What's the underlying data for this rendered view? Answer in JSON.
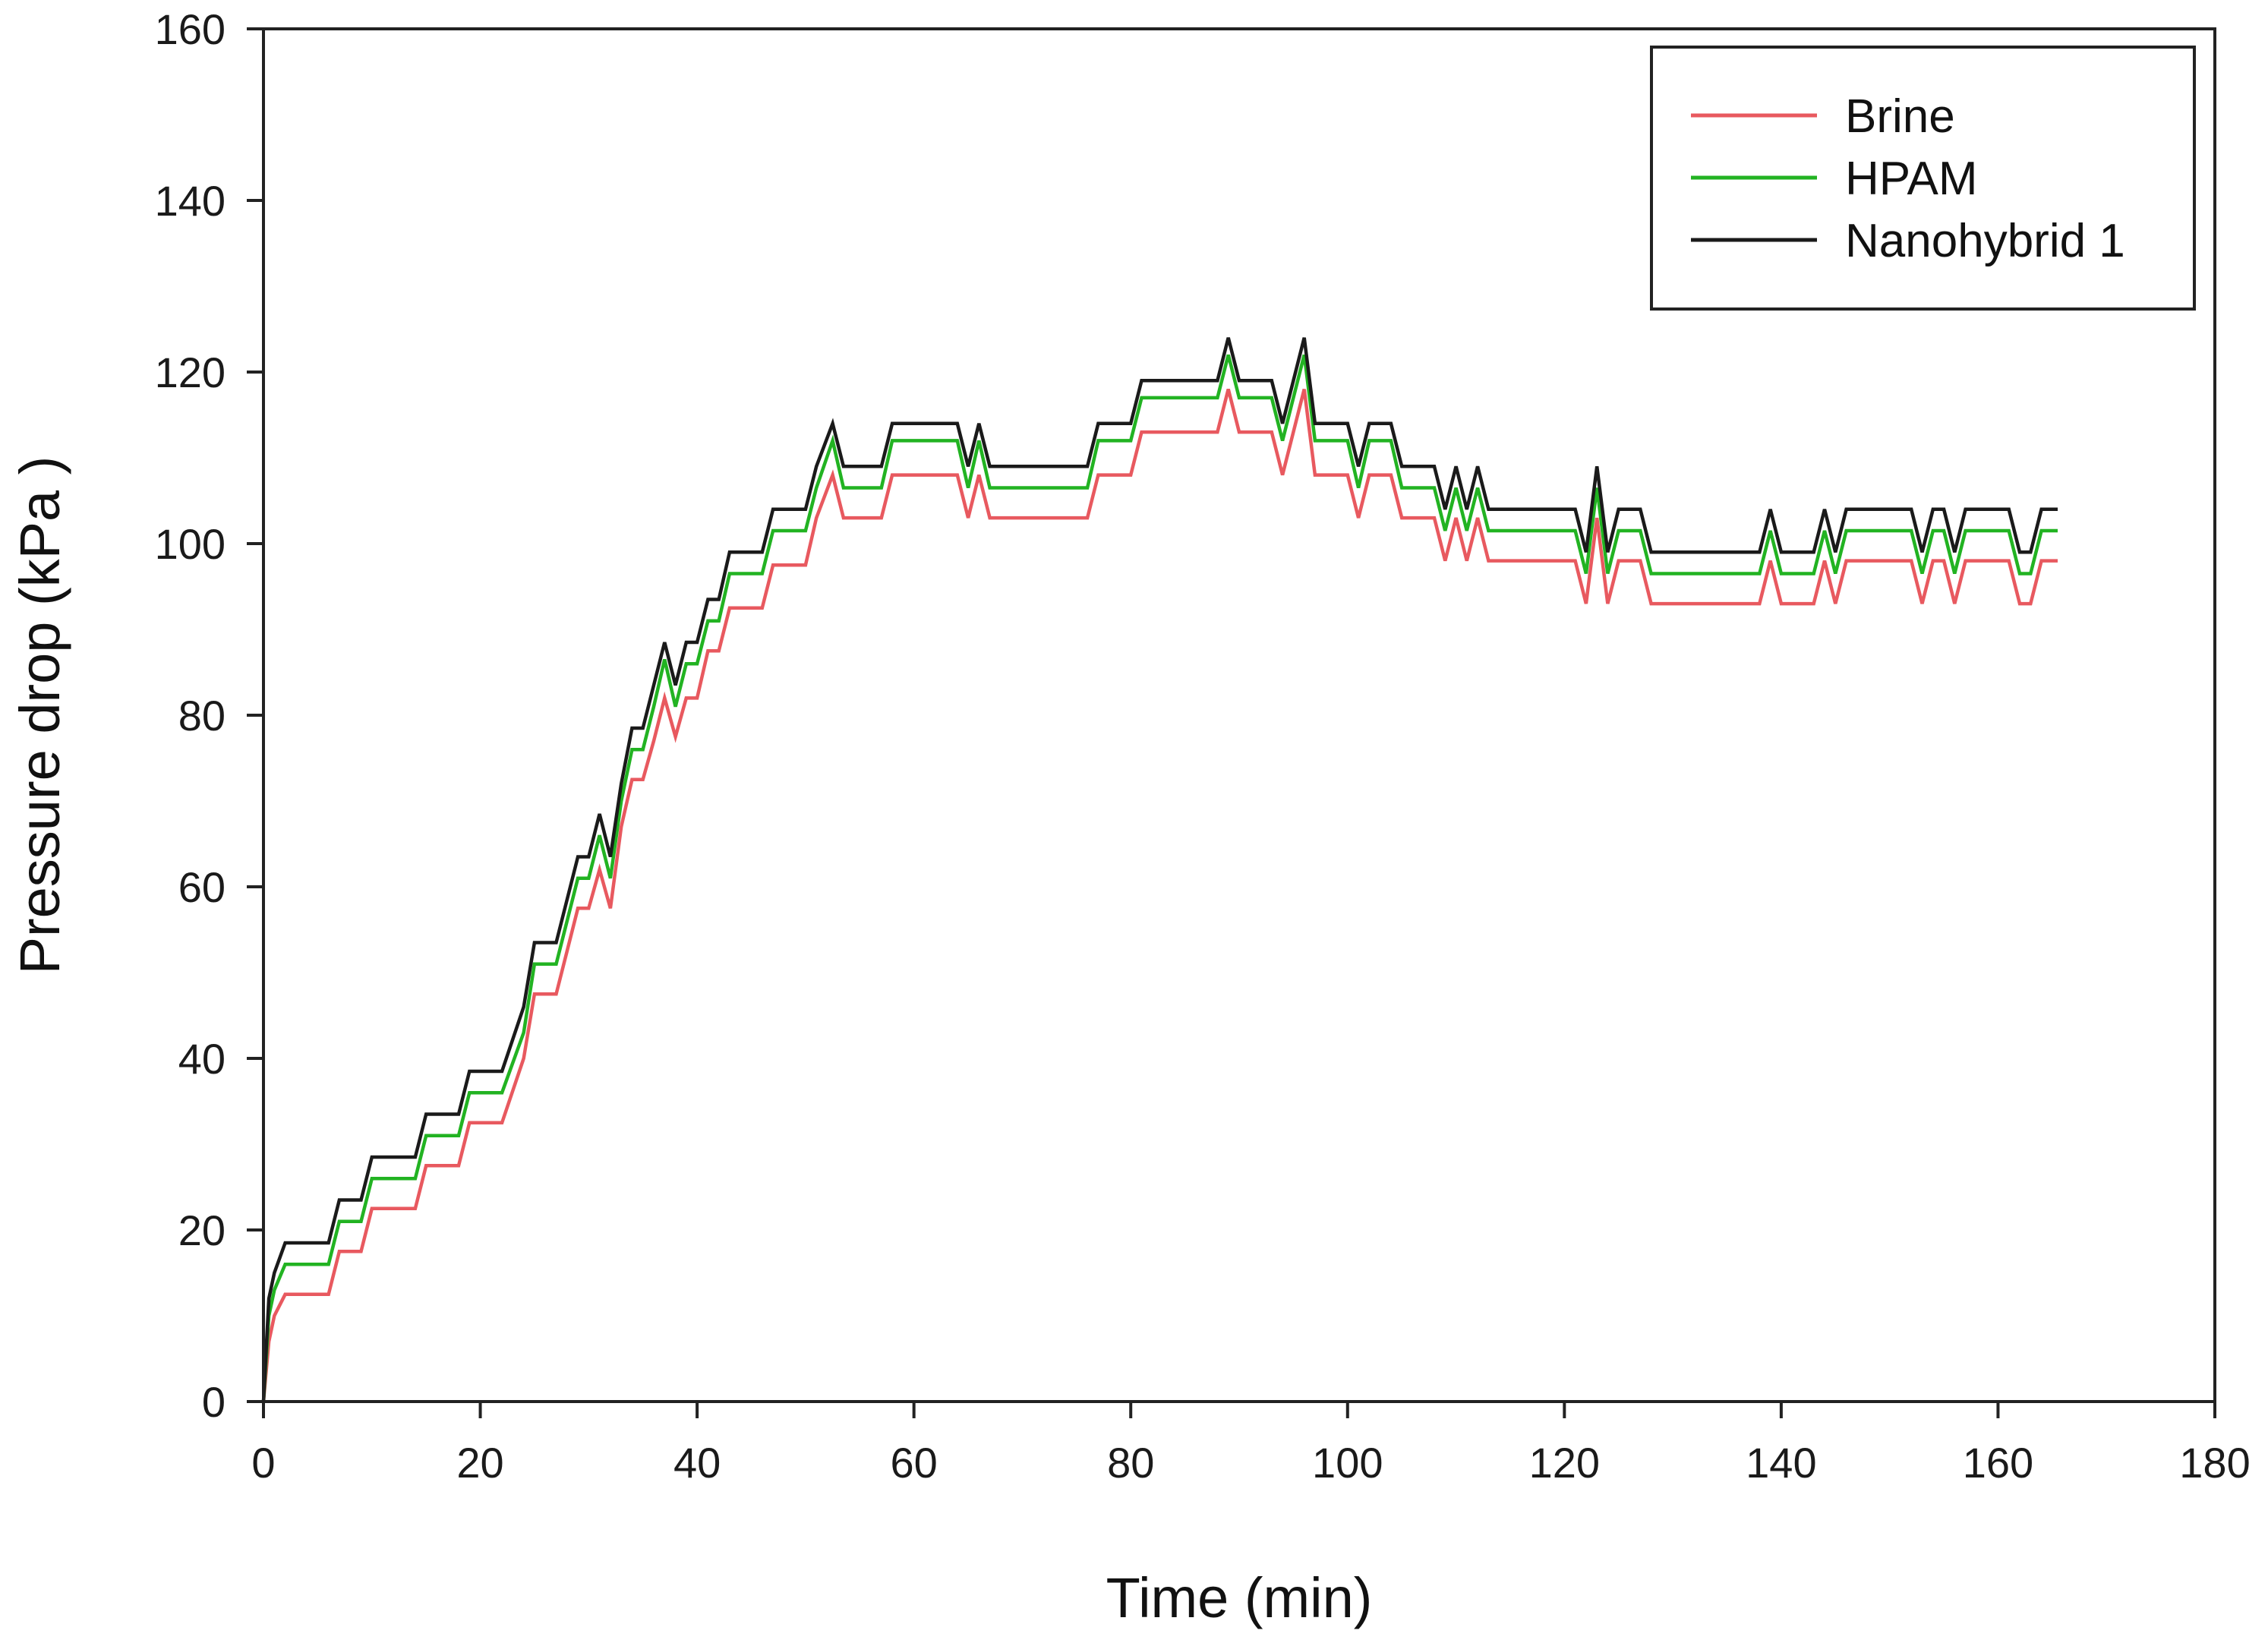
{
  "chart_data": {
    "type": "line",
    "title": "",
    "xlabel": "Time (min)",
    "ylabel": "Pressure drop (kPa )",
    "xlim": [
      0,
      180
    ],
    "ylim": [
      0,
      160
    ],
    "xticks": [
      "0",
      "20",
      "40",
      "60",
      "80",
      "100",
      "120",
      "140",
      "160",
      "180"
    ],
    "yticks": [
      "0",
      "20",
      "40",
      "60",
      "80",
      "100",
      "120",
      "140",
      "160"
    ],
    "grid": false,
    "legend_position": "top-right",
    "series": [
      {
        "name": "Brine",
        "color": "#e8595f",
        "points": [
          [
            0,
            0
          ],
          [
            0.5,
            7
          ],
          [
            1,
            10
          ],
          [
            2,
            12.5
          ],
          [
            6,
            12.5
          ],
          [
            7,
            17.5
          ],
          [
            9,
            17.5
          ],
          [
            10,
            22.5
          ],
          [
            14,
            22.5
          ],
          [
            15,
            27.5
          ],
          [
            18,
            27.5
          ],
          [
            19,
            32.5
          ],
          [
            22,
            32.5
          ],
          [
            24,
            40
          ],
          [
            25,
            47.5
          ],
          [
            27,
            47.5
          ],
          [
            28,
            52.5
          ],
          [
            29,
            57.5
          ],
          [
            30,
            57.5
          ],
          [
            31,
            62
          ],
          [
            32,
            57.5
          ],
          [
            33,
            67
          ],
          [
            34,
            72.5
          ],
          [
            35,
            72.5
          ],
          [
            36,
            77
          ],
          [
            37,
            82
          ],
          [
            38,
            77.5
          ],
          [
            39,
            82
          ],
          [
            40,
            82
          ],
          [
            41,
            87.5
          ],
          [
            42,
            87.5
          ],
          [
            43,
            92.5
          ],
          [
            46,
            92.5
          ],
          [
            47,
            97.5
          ],
          [
            50,
            97.5
          ],
          [
            51,
            103
          ],
          [
            52.5,
            108
          ],
          [
            53.5,
            103
          ],
          [
            57,
            103
          ],
          [
            58,
            108
          ],
          [
            64,
            108
          ],
          [
            65,
            103
          ],
          [
            66,
            108
          ],
          [
            67,
            103
          ],
          [
            76,
            103
          ],
          [
            77,
            108
          ],
          [
            80,
            108
          ],
          [
            81,
            113
          ],
          [
            88,
            113
          ],
          [
            89,
            118
          ],
          [
            90,
            113
          ],
          [
            93,
            113
          ],
          [
            94,
            108
          ],
          [
            95,
            113
          ],
          [
            96,
            118
          ],
          [
            97,
            108
          ],
          [
            100,
            108
          ],
          [
            101,
            103
          ],
          [
            102,
            108
          ],
          [
            104,
            108
          ],
          [
            105,
            103
          ],
          [
            108,
            103
          ],
          [
            109,
            98
          ],
          [
            110,
            103
          ],
          [
            111,
            98
          ],
          [
            112,
            103
          ],
          [
            113,
            98
          ],
          [
            121,
            98
          ],
          [
            122,
            93
          ],
          [
            123,
            103
          ],
          [
            124,
            93
          ],
          [
            125,
            98
          ],
          [
            127,
            98
          ],
          [
            128,
            93
          ],
          [
            138,
            93
          ],
          [
            139,
            98
          ],
          [
            140,
            93
          ],
          [
            143,
            93
          ],
          [
            144,
            98
          ],
          [
            145,
            93
          ],
          [
            146,
            98
          ],
          [
            147,
            98
          ],
          [
            152,
            98
          ],
          [
            153,
            93
          ],
          [
            154,
            98
          ],
          [
            155,
            98
          ],
          [
            156,
            93
          ],
          [
            157,
            98
          ],
          [
            161,
            98
          ],
          [
            162,
            93
          ],
          [
            163,
            93
          ],
          [
            164,
            98
          ],
          [
            165.5,
            98
          ]
        ]
      },
      {
        "name": "HPAM",
        "color": "#22b322",
        "points": [
          [
            0,
            0
          ],
          [
            0.5,
            10
          ],
          [
            1,
            13
          ],
          [
            2,
            16
          ],
          [
            6,
            16
          ],
          [
            7,
            21
          ],
          [
            9,
            21
          ],
          [
            10,
            26
          ],
          [
            14,
            26
          ],
          [
            15,
            31
          ],
          [
            18,
            31
          ],
          [
            19,
            36
          ],
          [
            22,
            36
          ],
          [
            24,
            43
          ],
          [
            25,
            51
          ],
          [
            27,
            51
          ],
          [
            28,
            56
          ],
          [
            29,
            61
          ],
          [
            30,
            61
          ],
          [
            31,
            66
          ],
          [
            32,
            61
          ],
          [
            33,
            70
          ],
          [
            34,
            76
          ],
          [
            35,
            76
          ],
          [
            36,
            81
          ],
          [
            37,
            86.5
          ],
          [
            38,
            81
          ],
          [
            39,
            86
          ],
          [
            40,
            86
          ],
          [
            41,
            91
          ],
          [
            42,
            91
          ],
          [
            43,
            96.5
          ],
          [
            46,
            96.5
          ],
          [
            47,
            101.5
          ],
          [
            50,
            101.5
          ],
          [
            51,
            106.5
          ],
          [
            52.5,
            112
          ],
          [
            53.5,
            106.5
          ],
          [
            57,
            106.5
          ],
          [
            58,
            112
          ],
          [
            64,
            112
          ],
          [
            65,
            106.5
          ],
          [
            66,
            112
          ],
          [
            67,
            106.5
          ],
          [
            76,
            106.5
          ],
          [
            77,
            112
          ],
          [
            80,
            112
          ],
          [
            81,
            117
          ],
          [
            88,
            117
          ],
          [
            89,
            122
          ],
          [
            90,
            117
          ],
          [
            93,
            117
          ],
          [
            94,
            112
          ],
          [
            95,
            117
          ],
          [
            96,
            122
          ],
          [
            97,
            112
          ],
          [
            100,
            112
          ],
          [
            101,
            106.5
          ],
          [
            102,
            112
          ],
          [
            104,
            112
          ],
          [
            105,
            106.5
          ],
          [
            108,
            106.5
          ],
          [
            109,
            101.5
          ],
          [
            110,
            106.5
          ],
          [
            111,
            101.5
          ],
          [
            112,
            106.5
          ],
          [
            113,
            101.5
          ],
          [
            121,
            101.5
          ],
          [
            122,
            96.5
          ],
          [
            123,
            106.5
          ],
          [
            124,
            96.5
          ],
          [
            125,
            101.5
          ],
          [
            127,
            101.5
          ],
          [
            128,
            96.5
          ],
          [
            138,
            96.5
          ],
          [
            139,
            101.5
          ],
          [
            140,
            96.5
          ],
          [
            143,
            96.5
          ],
          [
            144,
            101.5
          ],
          [
            145,
            96.5
          ],
          [
            146,
            101.5
          ],
          [
            147,
            101.5
          ],
          [
            152,
            101.5
          ],
          [
            153,
            96.5
          ],
          [
            154,
            101.5
          ],
          [
            155,
            101.5
          ],
          [
            156,
            96.5
          ],
          [
            157,
            101.5
          ],
          [
            161,
            101.5
          ],
          [
            162,
            96.5
          ],
          [
            163,
            96.5
          ],
          [
            164,
            101.5
          ],
          [
            165.5,
            101.5
          ]
        ]
      },
      {
        "name": "Nanohybrid 1",
        "color": "#1a1a1a",
        "points": [
          [
            0,
            0
          ],
          [
            0.5,
            12
          ],
          [
            1,
            15
          ],
          [
            2,
            18.5
          ],
          [
            6,
            18.5
          ],
          [
            7,
            23.5
          ],
          [
            9,
            23.5
          ],
          [
            10,
            28.5
          ],
          [
            14,
            28.5
          ],
          [
            15,
            33.5
          ],
          [
            18,
            33.5
          ],
          [
            19,
            38.5
          ],
          [
            22,
            38.5
          ],
          [
            24,
            46
          ],
          [
            25,
            53.5
          ],
          [
            27,
            53.5
          ],
          [
            28,
            58.5
          ],
          [
            29,
            63.5
          ],
          [
            30,
            63.5
          ],
          [
            31,
            68.5
          ],
          [
            32,
            63.5
          ],
          [
            33,
            72
          ],
          [
            34,
            78.5
          ],
          [
            35,
            78.5
          ],
          [
            36,
            83.5
          ],
          [
            37,
            88.5
          ],
          [
            38,
            83.5
          ],
          [
            39,
            88.5
          ],
          [
            40,
            88.5
          ],
          [
            41,
            93.5
          ],
          [
            42,
            93.5
          ],
          [
            43,
            99
          ],
          [
            46,
            99
          ],
          [
            47,
            104
          ],
          [
            50,
            104
          ],
          [
            51,
            109
          ],
          [
            52.5,
            114
          ],
          [
            53.5,
            109
          ],
          [
            57,
            109
          ],
          [
            58,
            114
          ],
          [
            64,
            114
          ],
          [
            65,
            109
          ],
          [
            66,
            114
          ],
          [
            67,
            109
          ],
          [
            76,
            109
          ],
          [
            77,
            114
          ],
          [
            80,
            114
          ],
          [
            81,
            119
          ],
          [
            88,
            119
          ],
          [
            89,
            124
          ],
          [
            90,
            119
          ],
          [
            93,
            119
          ],
          [
            94,
            114
          ],
          [
            95,
            119
          ],
          [
            96,
            124
          ],
          [
            97,
            114
          ],
          [
            100,
            114
          ],
          [
            101,
            109
          ],
          [
            102,
            114
          ],
          [
            104,
            114
          ],
          [
            105,
            109
          ],
          [
            108,
            109
          ],
          [
            109,
            104
          ],
          [
            110,
            109
          ],
          [
            111,
            104
          ],
          [
            112,
            109
          ],
          [
            113,
            104
          ],
          [
            121,
            104
          ],
          [
            122,
            99
          ],
          [
            123,
            109
          ],
          [
            124,
            99
          ],
          [
            125,
            104
          ],
          [
            127,
            104
          ],
          [
            128,
            99
          ],
          [
            138,
            99
          ],
          [
            139,
            104
          ],
          [
            140,
            99
          ],
          [
            143,
            99
          ],
          [
            144,
            104
          ],
          [
            145,
            99
          ],
          [
            146,
            104
          ],
          [
            147,
            104
          ],
          [
            152,
            104
          ],
          [
            153,
            99
          ],
          [
            154,
            104
          ],
          [
            155,
            104
          ],
          [
            156,
            99
          ],
          [
            157,
            104
          ],
          [
            161,
            104
          ],
          [
            162,
            99
          ],
          [
            163,
            99
          ],
          [
            164,
            104
          ],
          [
            165.5,
            104
          ]
        ]
      }
    ]
  }
}
